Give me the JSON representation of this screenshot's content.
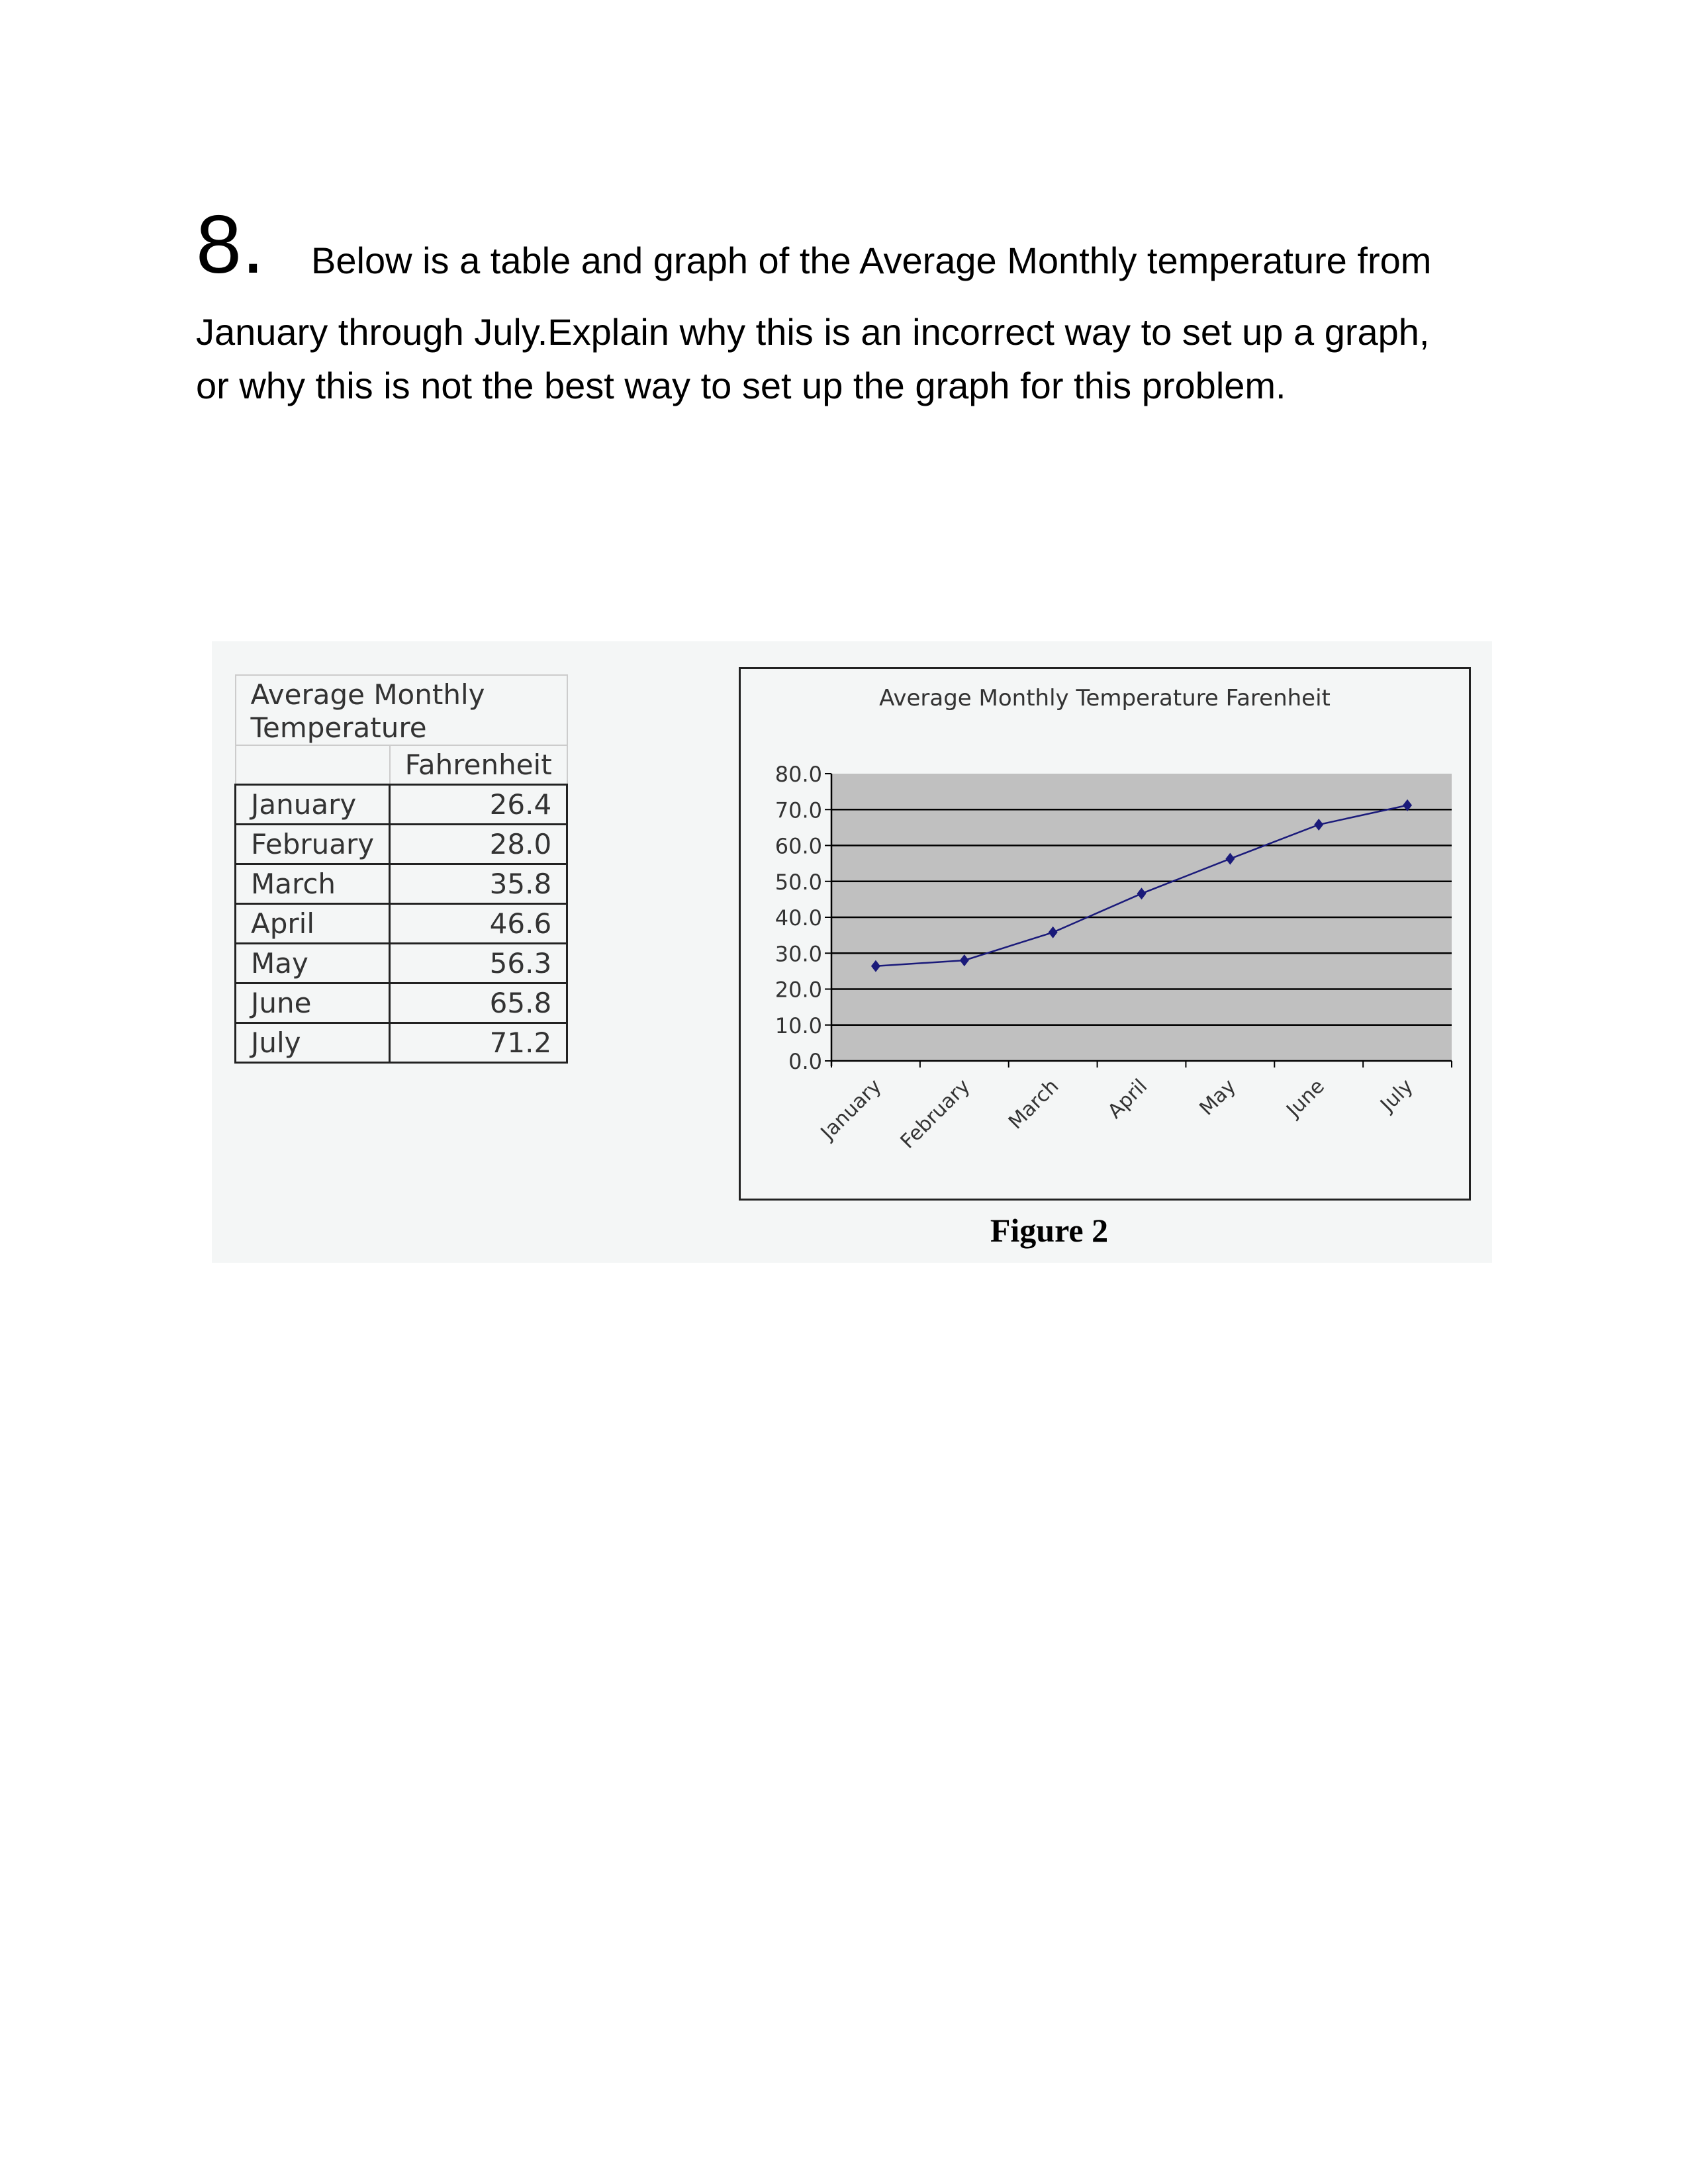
{
  "question": {
    "number": "8.",
    "lines": [
      "Below is a table and graph of the Average Monthly temperature from",
      "January through July.Explain why this is an incorrect way to set up a graph,",
      "or why this is not the best way to set up the graph for this problem."
    ]
  },
  "table": {
    "title_line1": "Average Monthly",
    "title_line2": "Temperature",
    "column_header": "Fahrenheit",
    "rows": [
      {
        "month": "January",
        "value": "26.4"
      },
      {
        "month": "February",
        "value": "28.0"
      },
      {
        "month": "March",
        "value": "35.8"
      },
      {
        "month": "April",
        "value": "46.6"
      },
      {
        "month": "May",
        "value": "56.3"
      },
      {
        "month": "June",
        "value": "65.8"
      },
      {
        "month": "July",
        "value": "71.2"
      }
    ]
  },
  "figure_caption": "Figure 2",
  "chart_data": {
    "type": "line",
    "title": "Average Monthly Temperature Farenheit",
    "categories": [
      "January",
      "February",
      "March",
      "April",
      "May",
      "June",
      "July"
    ],
    "values": [
      26.4,
      28.0,
      35.8,
      46.6,
      56.3,
      65.8,
      71.2
    ],
    "ylim": [
      0,
      80
    ],
    "yticks": [
      "0.0",
      "10.0",
      "20.0",
      "30.0",
      "40.0",
      "50.0",
      "60.0",
      "70.0",
      "80.0"
    ],
    "grid": true,
    "legend": "none",
    "colors": {
      "line": "#1a1a7a",
      "plot_bg": "#c0c0c0",
      "gridline": "#000000"
    }
  }
}
